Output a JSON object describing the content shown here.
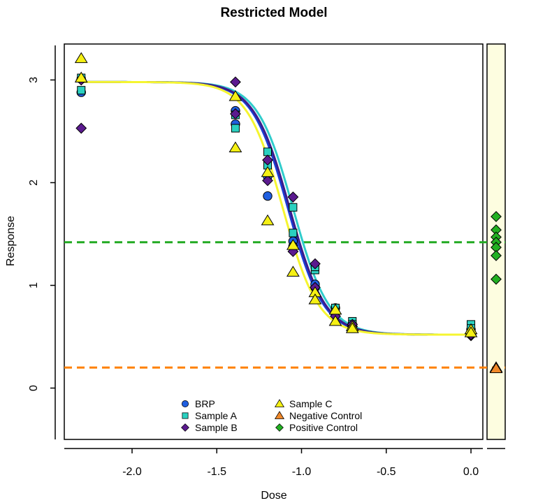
{
  "chart_data": {
    "type": "scatter",
    "title": "Restricted Model",
    "xlabel": "Dose",
    "ylabel": "Response",
    "xlim": [
      -2.4,
      0.07
    ],
    "ylim": [
      -0.5,
      3.35
    ],
    "x_ticks": [
      -2.0,
      -1.5,
      -1.0,
      -0.5,
      0.0
    ],
    "x_tick_labels": [
      "-2.0",
      "-1.5",
      "-1.0",
      "-0.5",
      "0.0"
    ],
    "y_ticks": [
      0,
      1,
      2,
      3
    ],
    "y_tick_labels": [
      "0",
      "1",
      "2",
      "3"
    ],
    "reference_lines": [
      {
        "y": 1.42,
        "color": "#22aa22",
        "style": "dashed"
      },
      {
        "y": 0.2,
        "color": "#ff8000",
        "style": "dashed"
      }
    ],
    "curves": [
      {
        "series": "BRP",
        "color": "#1a3fd6",
        "top": 2.98,
        "bottom": 0.52,
        "ec50": -1.08,
        "slope": 9.5
      },
      {
        "series": "Sample A",
        "color": "#30cccc",
        "top": 2.98,
        "bottom": 0.52,
        "ec50": -1.05,
        "slope": 9.5
      },
      {
        "series": "Sample B",
        "color": "#3a1d8c",
        "top": 2.98,
        "bottom": 0.52,
        "ec50": -1.07,
        "slope": 9.5
      },
      {
        "series": "Sample C",
        "color": "#f5f530",
        "top": 2.98,
        "bottom": 0.52,
        "ec50": -1.11,
        "slope": 9.5
      }
    ],
    "series": [
      {
        "name": "BRP",
        "marker": "circle",
        "fill": "#1f5fe0",
        "points": [
          [
            -2.3,
            2.88
          ],
          [
            -2.3,
            3.01
          ],
          [
            -1.39,
            2.57
          ],
          [
            -1.39,
            2.7
          ],
          [
            -1.2,
            1.87
          ],
          [
            -1.2,
            2.06
          ],
          [
            -1.05,
            1.43
          ],
          [
            -1.05,
            1.38
          ],
          [
            -0.92,
            0.98
          ],
          [
            -0.92,
            1.01
          ],
          [
            -0.8,
            0.73
          ],
          [
            -0.8,
            0.78
          ],
          [
            -0.7,
            0.62
          ],
          [
            -0.7,
            0.6
          ],
          [
            0.0,
            0.54
          ],
          [
            0.0,
            0.57
          ]
        ]
      },
      {
        "name": "Sample A",
        "marker": "square",
        "fill": "#2ad1c0",
        "points": [
          [
            -2.3,
            3.02
          ],
          [
            -2.3,
            2.9
          ],
          [
            -1.39,
            2.53
          ],
          [
            -1.39,
            2.66
          ],
          [
            -1.2,
            2.3
          ],
          [
            -1.2,
            2.17
          ],
          [
            -1.05,
            1.76
          ],
          [
            -1.05,
            1.51
          ],
          [
            -0.92,
            1.15
          ],
          [
            -0.92,
            1.18
          ],
          [
            -0.8,
            0.78
          ],
          [
            -0.8,
            0.74
          ],
          [
            -0.7,
            0.65
          ],
          [
            -0.7,
            0.62
          ],
          [
            0.0,
            0.62
          ],
          [
            0.0,
            0.58
          ]
        ]
      },
      {
        "name": "Sample B",
        "marker": "diamond",
        "fill": "#5b1a8f",
        "points": [
          [
            -2.3,
            2.53
          ],
          [
            -2.3,
            3.0
          ],
          [
            -1.39,
            2.98
          ],
          [
            -1.39,
            2.67
          ],
          [
            -1.2,
            2.22
          ],
          [
            -1.2,
            2.02
          ],
          [
            -1.05,
            1.86
          ],
          [
            -1.05,
            1.33
          ],
          [
            -0.92,
            1.21
          ],
          [
            -0.92,
            0.98
          ],
          [
            -0.8,
            0.73
          ],
          [
            -0.8,
            0.7
          ],
          [
            -0.7,
            0.6
          ],
          [
            -0.7,
            0.62
          ],
          [
            0.0,
            0.51
          ],
          [
            0.0,
            0.52
          ]
        ]
      },
      {
        "name": "Sample C",
        "marker": "triangle",
        "fill": "#f5f014",
        "points": [
          [
            -2.3,
            3.21
          ],
          [
            -2.3,
            3.02
          ],
          [
            -1.39,
            2.84
          ],
          [
            -1.39,
            2.34
          ],
          [
            -1.2,
            2.1
          ],
          [
            -1.2,
            1.63
          ],
          [
            -1.05,
            1.39
          ],
          [
            -1.05,
            1.13
          ],
          [
            -0.92,
            0.93
          ],
          [
            -0.92,
            0.86
          ],
          [
            -0.8,
            0.76
          ],
          [
            -0.8,
            0.65
          ],
          [
            -0.7,
            0.6
          ],
          [
            -0.7,
            0.58
          ],
          [
            0.0,
            0.57
          ],
          [
            0.0,
            0.54
          ]
        ]
      }
    ],
    "controls": [
      {
        "name": "Negative Control",
        "marker": "triangle",
        "fill": "#f0882a",
        "values": [
          0.2,
          0.19
        ]
      },
      {
        "name": "Positive Control",
        "marker": "diamond",
        "fill": "#22b022",
        "values": [
          1.67,
          1.54,
          1.47,
          1.42,
          1.37,
          1.29,
          1.06
        ]
      }
    ],
    "legend": {
      "placement": "bottom-center",
      "entries": [
        {
          "label": "BRP",
          "marker": "circle",
          "fill": "#1f5fe0"
        },
        {
          "label": "Sample A",
          "marker": "square",
          "fill": "#2ad1c0"
        },
        {
          "label": "Sample B",
          "marker": "diamond",
          "fill": "#5b1a8f"
        },
        {
          "label": "Sample C",
          "marker": "triangle",
          "fill": "#f5f014"
        },
        {
          "label": "Negative Control",
          "marker": "triangle",
          "fill": "#f0882a"
        },
        {
          "label": "Positive Control",
          "marker": "diamond",
          "fill": "#22b022"
        }
      ]
    },
    "side_panel_color": "#fdfde0",
    "grid": false
  }
}
